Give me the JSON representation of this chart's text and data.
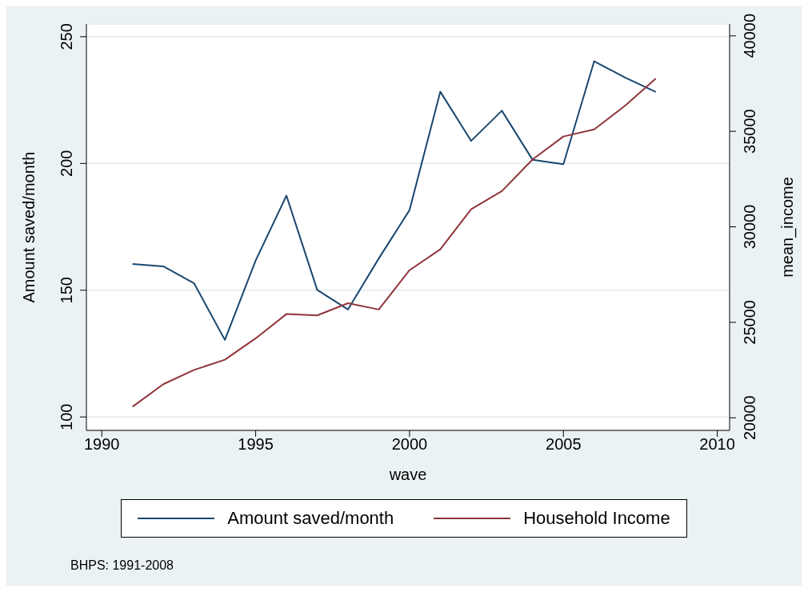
{
  "chart_data": {
    "type": "line",
    "xlabel": "wave",
    "ylabel": "Amount saved/month",
    "y2label": "mean_income",
    "x": [
      1991,
      1992,
      1993,
      1994,
      1995,
      1996,
      1997,
      1998,
      1999,
      2000,
      2001,
      2002,
      2003,
      2004,
      2005,
      2006,
      2007,
      2008
    ],
    "series": [
      {
        "name": "Amount saved/month",
        "color": "#1a476f",
        "values": [
          160.3,
          159.4,
          152.7,
          130.4,
          161.7,
          187.3,
          150.1,
          142.4,
          162.5,
          181.6,
          228.3,
          208.9,
          220.8,
          201.4,
          199.7,
          240.3,
          233.9,
          228.2
        ]
      },
      {
        "name": "Household Income",
        "color": "#90353b",
        "axis": "y2",
        "values": [
          20580,
          21760,
          22510,
          23040,
          24160,
          25430,
          25360,
          26000,
          25670,
          27730,
          28820,
          30920,
          31870,
          33530,
          34730,
          35100,
          36340,
          37760
        ]
      }
    ],
    "xlim": [
      1989.5,
      2010.4
    ],
    "xticks": [
      1990,
      1995,
      2000,
      2005,
      2010
    ],
    "ylim": [
      94.7,
      255
    ],
    "yticks": [
      100,
      150,
      200,
      250
    ],
    "y2lim": [
      19340,
      40620
    ],
    "y2ticks": [
      20000,
      25000,
      30000,
      35000,
      40000
    ],
    "grid": "y",
    "legend": "bottom",
    "marker": "none",
    "line_style": "solid",
    "annotations": [
      "BHPS: 1991-2008"
    ]
  }
}
